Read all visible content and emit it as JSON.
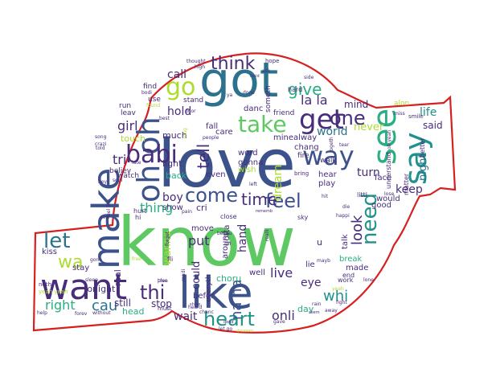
{
  "outline_color": "#d62020",
  "palette": {
    "purple": "#472d7b",
    "indigo": "#3b528b",
    "blue": "#2c728e",
    "teal": "#21918c",
    "green": "#28ae80",
    "lime": "#5ec962",
    "yellow": "#addc30",
    "dark": "#440154"
  },
  "words": [
    {
      "text": "love",
      "color": "indigo"
    },
    {
      "text": "know",
      "color": "lime"
    },
    {
      "text": "got",
      "color": "blue"
    },
    {
      "text": "like",
      "color": "indigo"
    },
    {
      "text": "want",
      "color": "purple"
    },
    {
      "text": "make",
      "color": "indigo"
    },
    {
      "text": "oh oh",
      "color": "indigo"
    },
    {
      "text": "see",
      "color": "green"
    },
    {
      "text": "say",
      "color": "teal"
    },
    {
      "text": "get",
      "color": "purple"
    },
    {
      "text": "take",
      "color": "lime"
    },
    {
      "text": "go",
      "color": "yellow"
    },
    {
      "text": "babi",
      "color": "purple"
    },
    {
      "text": "think",
      "color": "purple"
    },
    {
      "text": "way",
      "color": "indigo"
    },
    {
      "text": "heart",
      "color": "teal"
    },
    {
      "text": "come",
      "color": "indigo"
    },
    {
      "text": "feel",
      "color": "indigo"
    },
    {
      "text": "time",
      "color": "purple"
    },
    {
      "text": "need",
      "color": "teal"
    },
    {
      "text": "let",
      "color": "blue"
    },
    {
      "text": "wa",
      "color": "yellow"
    },
    {
      "text": "one",
      "color": "purple"
    },
    {
      "text": "thi",
      "color": "purple"
    },
    {
      "text": "tell",
      "color": "purple"
    },
    {
      "text": "give",
      "color": "green"
    },
    {
      "text": "look",
      "color": "purple"
    },
    {
      "text": "right",
      "color": "green"
    },
    {
      "text": "cau",
      "color": "blue"
    },
    {
      "text": "whi",
      "color": "teal"
    },
    {
      "text": "na na",
      "color": "indigo"
    },
    {
      "text": "call",
      "color": "purple"
    },
    {
      "text": "hold",
      "color": "purple"
    },
    {
      "text": "girl",
      "color": "purple"
    },
    {
      "text": "tri",
      "color": "purple"
    },
    {
      "text": "thing",
      "color": "green"
    },
    {
      "text": "put",
      "color": "purple"
    },
    {
      "text": "boy",
      "color": "purple"
    },
    {
      "text": "wait",
      "color": "purple"
    },
    {
      "text": "live",
      "color": "purple"
    },
    {
      "text": "onli",
      "color": "purple"
    },
    {
      "text": "hand",
      "color": "purple"
    },
    {
      "text": "la la",
      "color": "purple"
    },
    {
      "text": "world",
      "color": "blue"
    },
    {
      "text": "turn",
      "color": "purple"
    },
    {
      "text": "keep",
      "color": "purple"
    },
    {
      "text": "life",
      "color": "teal"
    },
    {
      "text": "said",
      "color": "purple"
    },
    {
      "text": "night",
      "color": "blue"
    },
    {
      "text": "never",
      "color": "yellow"
    },
    {
      "text": "mind",
      "color": "purple"
    },
    {
      "text": "eye",
      "color": "purple"
    },
    {
      "text": "dream",
      "color": "yellow"
    },
    {
      "text": "could",
      "color": "purple"
    },
    {
      "text": "wanna",
      "color": "yellow"
    },
    {
      "text": "stop",
      "color": "purple"
    },
    {
      "text": "still",
      "color": "purple"
    },
    {
      "text": "head",
      "color": "green"
    },
    {
      "text": "tonight",
      "color": "purple"
    },
    {
      "text": "stay",
      "color": "purple"
    },
    {
      "text": "kiss",
      "color": "purple"
    },
    {
      "text": "real",
      "color": "purple"
    },
    {
      "text": "much",
      "color": "purple"
    },
    {
      "text": "touch",
      "color": "yellow"
    },
    {
      "text": "light",
      "color": "purple"
    },
    {
      "text": "back",
      "color": "green"
    },
    {
      "text": "show",
      "color": "purple"
    },
    {
      "text": "cri",
      "color": "purple"
    },
    {
      "text": "choru",
      "color": "green"
    },
    {
      "text": "gotta",
      "color": "purple"
    },
    {
      "text": "around",
      "color": "purple"
    },
    {
      "text": "well",
      "color": "purple"
    },
    {
      "text": "lie",
      "color": "purple"
    },
    {
      "text": "break",
      "color": "green"
    },
    {
      "text": "made",
      "color": "purple"
    },
    {
      "text": "face",
      "color": "purple"
    },
    {
      "text": "would",
      "color": "purple"
    },
    {
      "text": "good",
      "color": "purple"
    },
    {
      "text": "play",
      "color": "purple"
    },
    {
      "text": "hear",
      "color": "purple"
    },
    {
      "text": "fall",
      "color": "purple"
    },
    {
      "text": "care",
      "color": "purple"
    },
    {
      "text": "word",
      "color": "purple"
    },
    {
      "text": "gonna",
      "color": "purple"
    },
    {
      "text": "wish",
      "color": "yellow"
    },
    {
      "text": "even",
      "color": "purple"
    },
    {
      "text": "move",
      "color": "purple"
    },
    {
      "text": "befor",
      "color": "purple"
    },
    {
      "text": "day",
      "color": "green"
    },
    {
      "text": "talk",
      "color": "purple"
    },
    {
      "text": "alway",
      "color": "purple"
    },
    {
      "text": "chang",
      "color": "purple"
    },
    {
      "text": "mine",
      "color": "purple"
    },
    {
      "text": "danc",
      "color": "purple"
    },
    {
      "text": "someth",
      "color": "purple"
    },
    {
      "text": "friend",
      "color": "purple"
    },
    {
      "text": "fire",
      "color": "purple"
    },
    {
      "text": "walk",
      "color": "purple"
    },
    {
      "text": "believ",
      "color": "purple"
    },
    {
      "text": "watch",
      "color": "purple"
    },
    {
      "text": "leav",
      "color": "purple"
    },
    {
      "text": "run",
      "color": "purple"
    },
    {
      "text": "find",
      "color": "purple"
    },
    {
      "text": "use",
      "color": "purple"
    },
    {
      "text": "stand",
      "color": "purple"
    },
    {
      "text": "sky",
      "color": "purple"
    },
    {
      "text": "close",
      "color": "purple"
    },
    {
      "text": "everyth",
      "color": "purple"
    },
    {
      "text": "hurt",
      "color": "purple"
    },
    {
      "text": "fli",
      "color": "purple"
    },
    {
      "text": "hi",
      "color": "purple"
    },
    {
      "text": "must",
      "color": "purple"
    },
    {
      "text": "end",
      "color": "purple"
    },
    {
      "text": "work",
      "color": "purple"
    },
    {
      "text": "matter",
      "color": "purple"
    },
    {
      "text": "better",
      "color": "purple"
    },
    {
      "text": "understand",
      "color": "purple"
    },
    {
      "text": "littl",
      "color": "purple"
    },
    {
      "text": "alon",
      "color": "yellow"
    },
    {
      "text": "smile",
      "color": "purple"
    },
    {
      "text": "hard",
      "color": "purple"
    },
    {
      "text": "hope",
      "color": "purple"
    },
    {
      "text": "thought",
      "color": "purple"
    },
    {
      "text": "high",
      "color": "purple"
    },
    {
      "text": "side",
      "color": "purple"
    },
    {
      "text": "tear",
      "color": "purple"
    },
    {
      "text": "done",
      "color": "purple"
    },
    {
      "text": "bring",
      "color": "purple"
    },
    {
      "text": "door",
      "color": "purple"
    },
    {
      "text": "best",
      "color": "purple"
    },
    {
      "text": "bodi",
      "color": "purple"
    },
    {
      "text": "found",
      "color": "yellow"
    },
    {
      "text": "crazi",
      "color": "purple"
    },
    {
      "text": "noth",
      "color": "purple"
    },
    {
      "text": "yeah yeah",
      "color": "yellow"
    },
    {
      "text": "help",
      "color": "purple"
    },
    {
      "text": "forev",
      "color": "purple"
    },
    {
      "text": "without",
      "color": "purple"
    },
    {
      "text": "song",
      "color": "purple"
    },
    {
      "text": "told",
      "color": "purple"
    },
    {
      "text": "late",
      "color": "purple"
    },
    {
      "text": "hey",
      "color": "purple"
    },
    {
      "text": "gone",
      "color": "purple"
    },
    {
      "text": "soul",
      "color": "purple"
    },
    {
      "text": "ever",
      "color": "purple"
    },
    {
      "text": "free",
      "color": "yellow"
    },
    {
      "text": "sleep",
      "color": "purple"
    },
    {
      "text": "feel like",
      "color": "purple"
    },
    {
      "text": "pain",
      "color": "purple"
    },
    {
      "text": "forget",
      "color": "purple"
    },
    {
      "text": "plea",
      "color": "purple"
    },
    {
      "text": "true",
      "color": "purple"
    },
    {
      "text": "chanc",
      "color": "purple"
    },
    {
      "text": "heard",
      "color": "purple"
    },
    {
      "text": "readi",
      "color": "purple"
    },
    {
      "text": "realli",
      "color": "purple"
    },
    {
      "text": "happi",
      "color": "purple"
    },
    {
      "text": "fight",
      "color": "purple"
    },
    {
      "text": "away",
      "color": "purple"
    },
    {
      "text": "rain",
      "color": "purple"
    },
    {
      "text": "hit",
      "color": "purple"
    },
    {
      "text": "yeah",
      "color": "yellow"
    },
    {
      "text": "die",
      "color": "purple"
    },
    {
      "text": "miss",
      "color": "purple"
    },
    {
      "text": "lose",
      "color": "purple"
    },
    {
      "text": "togeth",
      "color": "purple"
    },
    {
      "text": "ya",
      "color": "purple"
    },
    {
      "text": "ask",
      "color": "purple"
    },
    {
      "text": "left",
      "color": "purple"
    },
    {
      "text": "mayb",
      "color": "purple"
    },
    {
      "text": "becau",
      "color": "purple"
    },
    {
      "text": "insid",
      "color": "purple"
    },
    {
      "text": "people",
      "color": "purple"
    },
    {
      "text": "oh yeah",
      "color": "purple"
    },
    {
      "text": "long",
      "color": "yellow"
    },
    {
      "text": "dead",
      "color": "purple"
    },
    {
      "text": "shine",
      "color": "purple"
    },
    {
      "text": "seem",
      "color": "purple"
    },
    {
      "text": "rememb",
      "color": "purple"
    },
    {
      "text": "let go",
      "color": "purple"
    },
    {
      "text": "dreamer",
      "color": "yellow"
    },
    {
      "text": "u",
      "color": "purple"
    },
    {
      "text": "lone",
      "color": "purple"
    },
    {
      "text": "gave",
      "color": "purple"
    }
  ]
}
